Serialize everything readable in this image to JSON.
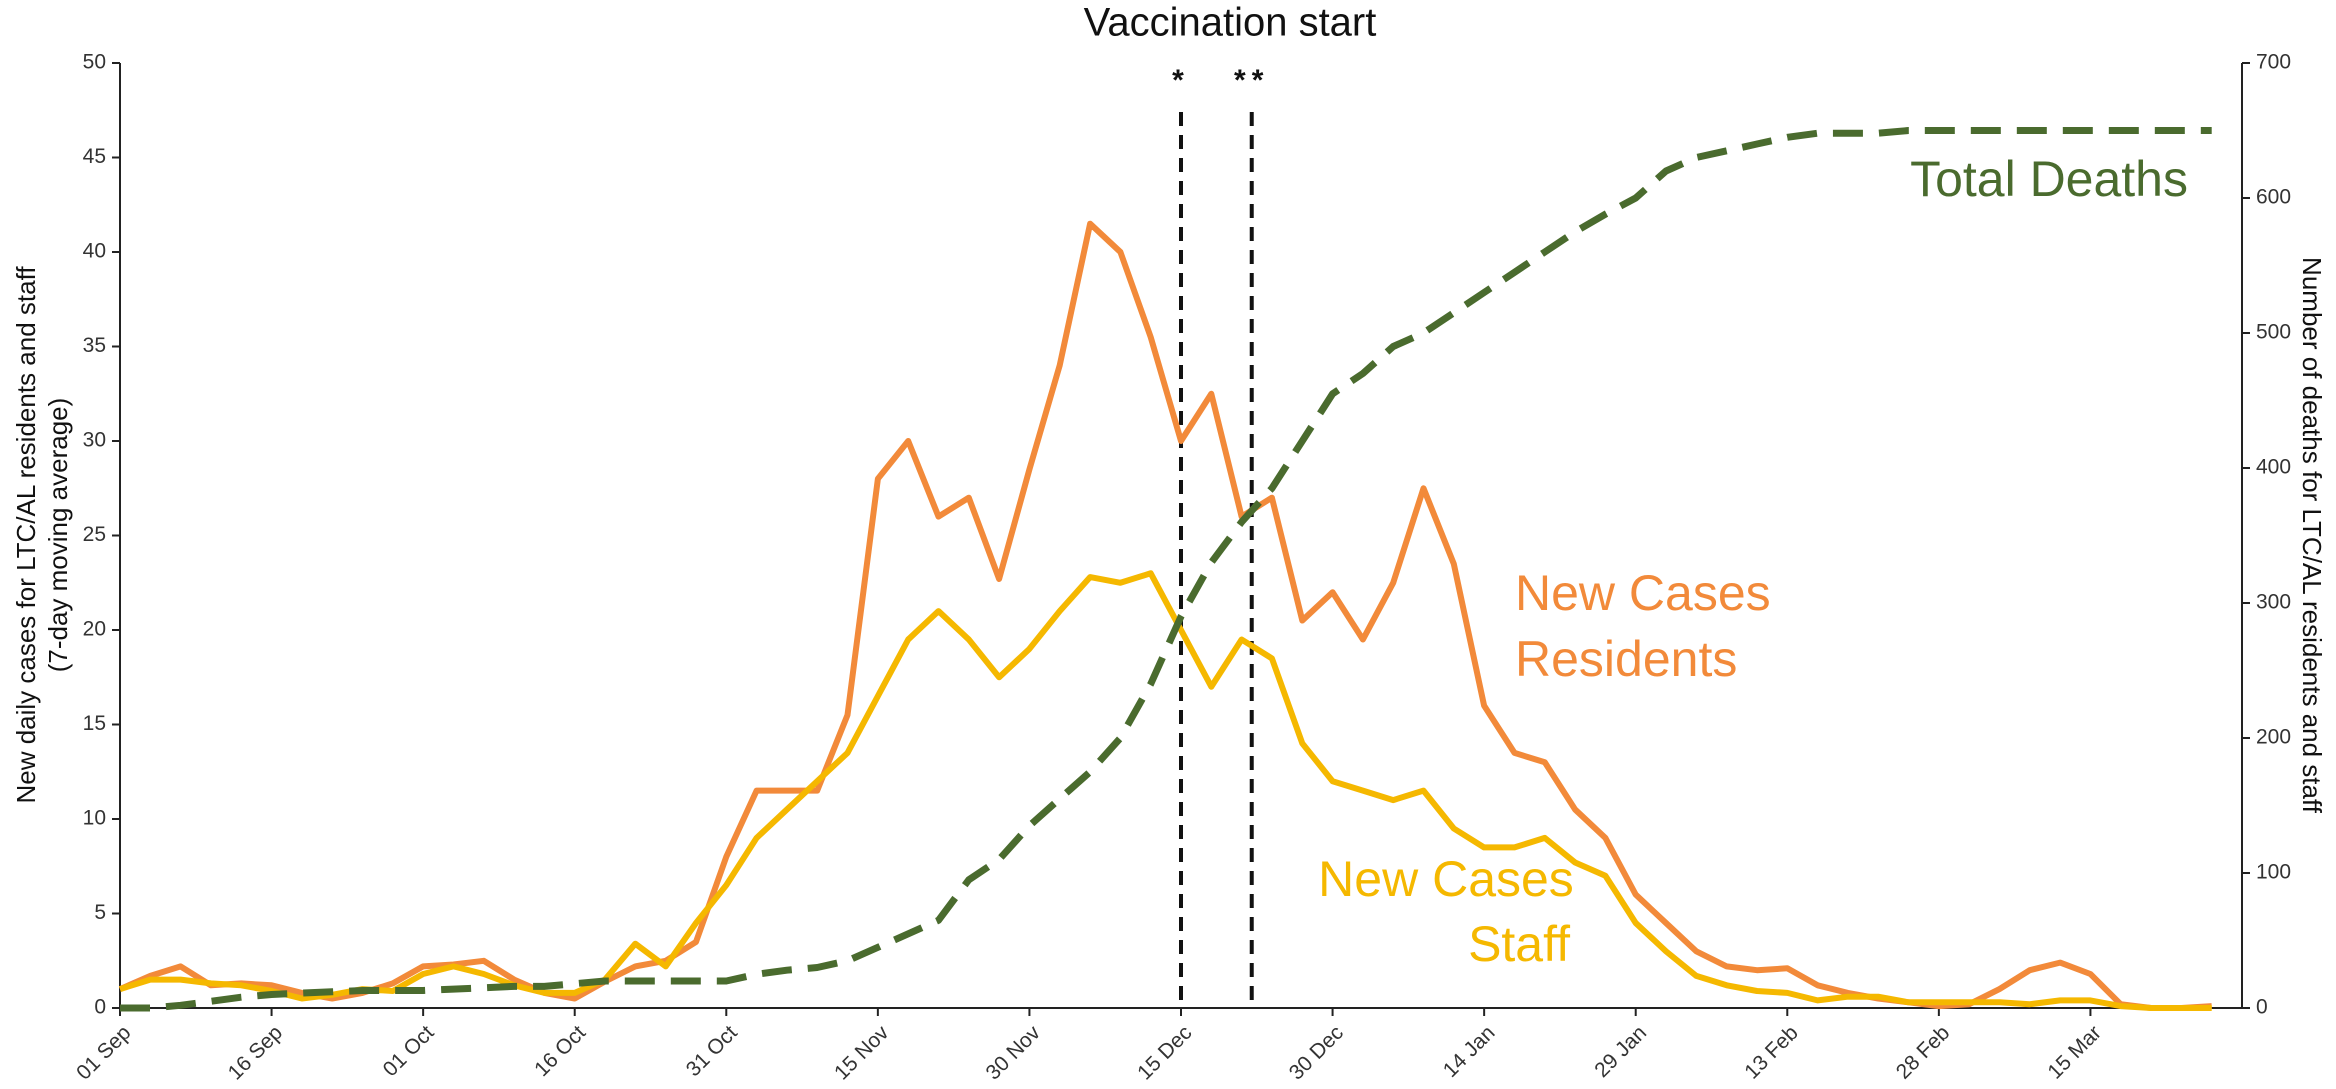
{
  "chart_data": {
    "type": "line",
    "title": "Vaccination start",
    "ylabel": [
      "New daily cases for LTC/AL residents and staff",
      "(7-day moving average)"
    ],
    "y2label": "Number of deaths for LTC/AL residents and staff",
    "x": [
      0,
      3,
      6,
      9,
      12,
      15,
      18,
      21,
      24,
      27,
      30,
      33,
      36,
      39,
      42,
      45,
      48,
      51,
      54,
      57,
      60,
      63,
      66,
      69,
      72,
      75,
      78,
      81,
      84,
      87,
      90,
      93,
      96,
      99,
      102,
      105,
      108,
      111,
      114,
      117,
      120,
      123,
      126,
      129,
      132,
      135,
      138,
      141,
      144,
      147,
      150,
      153,
      156,
      159,
      162,
      165,
      168,
      171,
      174,
      177,
      180,
      183,
      186,
      189,
      192,
      195,
      198,
      201,
      204,
      207
    ],
    "xlim": [
      0,
      210
    ],
    "xticks": [
      {
        "value": 0,
        "label": "01 Sep"
      },
      {
        "value": 15,
        "label": "16 Sep"
      },
      {
        "value": 30,
        "label": "01 Oct"
      },
      {
        "value": 45,
        "label": "16 Oct"
      },
      {
        "value": 60,
        "label": "31 Oct"
      },
      {
        "value": 75,
        "label": "15 Nov"
      },
      {
        "value": 90,
        "label": "30 Nov"
      },
      {
        "value": 105,
        "label": "15 Dec"
      },
      {
        "value": 120,
        "label": "30 Dec"
      },
      {
        "value": 135,
        "label": "14 Jan"
      },
      {
        "value": 150,
        "label": "29 Jan"
      },
      {
        "value": 165,
        "label": "13 Feb"
      },
      {
        "value": 180,
        "label": "28 Feb"
      },
      {
        "value": 195,
        "label": "15 Mar"
      }
    ],
    "ylim": [
      0,
      50
    ],
    "yticks": [
      0,
      5,
      10,
      15,
      20,
      25,
      30,
      35,
      40,
      45,
      50
    ],
    "y2lim": [
      0,
      700
    ],
    "y2ticks": [
      0,
      100,
      200,
      300,
      400,
      500,
      600,
      700
    ],
    "vlines": [
      {
        "x": 105,
        "label": "*"
      },
      {
        "x": 112,
        "label": "**"
      }
    ],
    "series": [
      {
        "name": [
          "New Cases",
          "Residents"
        ],
        "color": "#f28a3a",
        "values": [
          1,
          1.7,
          2.2,
          1.2,
          1.3,
          1.2,
          0.8,
          0.5,
          0.8,
          1.3,
          2.2,
          2.3,
          2.5,
          1.5,
          0.8,
          0.5,
          1.4,
          2.2,
          2.5,
          3.5,
          8,
          11.5,
          11.5,
          11.5,
          15.5,
          28,
          30,
          26,
          27,
          22.7,
          28.5,
          34,
          41.5,
          40,
          35.5,
          30,
          32.5,
          26,
          27,
          20.5,
          22,
          19.5,
          22.5,
          27.5,
          23.5,
          16,
          13.5,
          13,
          10.5,
          9,
          6,
          4.5,
          3,
          2.2,
          2,
          2.1,
          1.2,
          0.8,
          0.5,
          0.3,
          0.1,
          0.2,
          1,
          2,
          2.4,
          1.8,
          0.2,
          0,
          0,
          0.1
        ]
      },
      {
        "name": [
          "New Cases",
          "Staff"
        ],
        "color": "#f5b800",
        "values": [
          1,
          1.5,
          1.5,
          1.3,
          1.2,
          0.9,
          0.5,
          0.7,
          1,
          0.9,
          1.8,
          2.2,
          1.8,
          1.2,
          0.8,
          0.8,
          1.5,
          3.4,
          2.2,
          4.5,
          6.5,
          9,
          10.5,
          12,
          13.5,
          16.5,
          19.5,
          21,
          19.5,
          17.5,
          19,
          21,
          22.8,
          22.5,
          23,
          20,
          17,
          19.5,
          18.5,
          14,
          12,
          11.5,
          11,
          11.5,
          9.5,
          8.5,
          8.5,
          9,
          7.7,
          7,
          4.5,
          3,
          1.7,
          1.2,
          0.9,
          0.8,
          0.4,
          0.6,
          0.6,
          0.3,
          0.3,
          0.3,
          0.3,
          0.2,
          0.4,
          0.4,
          0.1,
          0,
          0,
          0
        ]
      },
      {
        "name": [
          "Total Deaths"
        ],
        "color": "#4a6b2e",
        "axis": "y2",
        "dashed": true,
        "values": [
          0,
          0,
          2,
          5,
          8,
          10,
          11,
          12,
          13,
          13,
          13,
          14,
          15,
          16,
          16,
          18,
          20,
          20,
          20,
          20,
          20,
          25,
          28,
          30,
          35,
          45,
          55,
          65,
          95,
          110,
          135,
          155,
          175,
          200,
          240,
          290,
          330,
          360,
          385,
          420,
          455,
          470,
          490,
          500,
          515,
          530,
          545,
          560,
          575,
          588,
          600,
          620,
          630,
          635,
          640,
          645,
          648,
          648,
          648,
          650,
          650,
          650,
          650,
          650,
          650,
          650,
          650,
          650,
          650,
          650
        ]
      }
    ]
  }
}
